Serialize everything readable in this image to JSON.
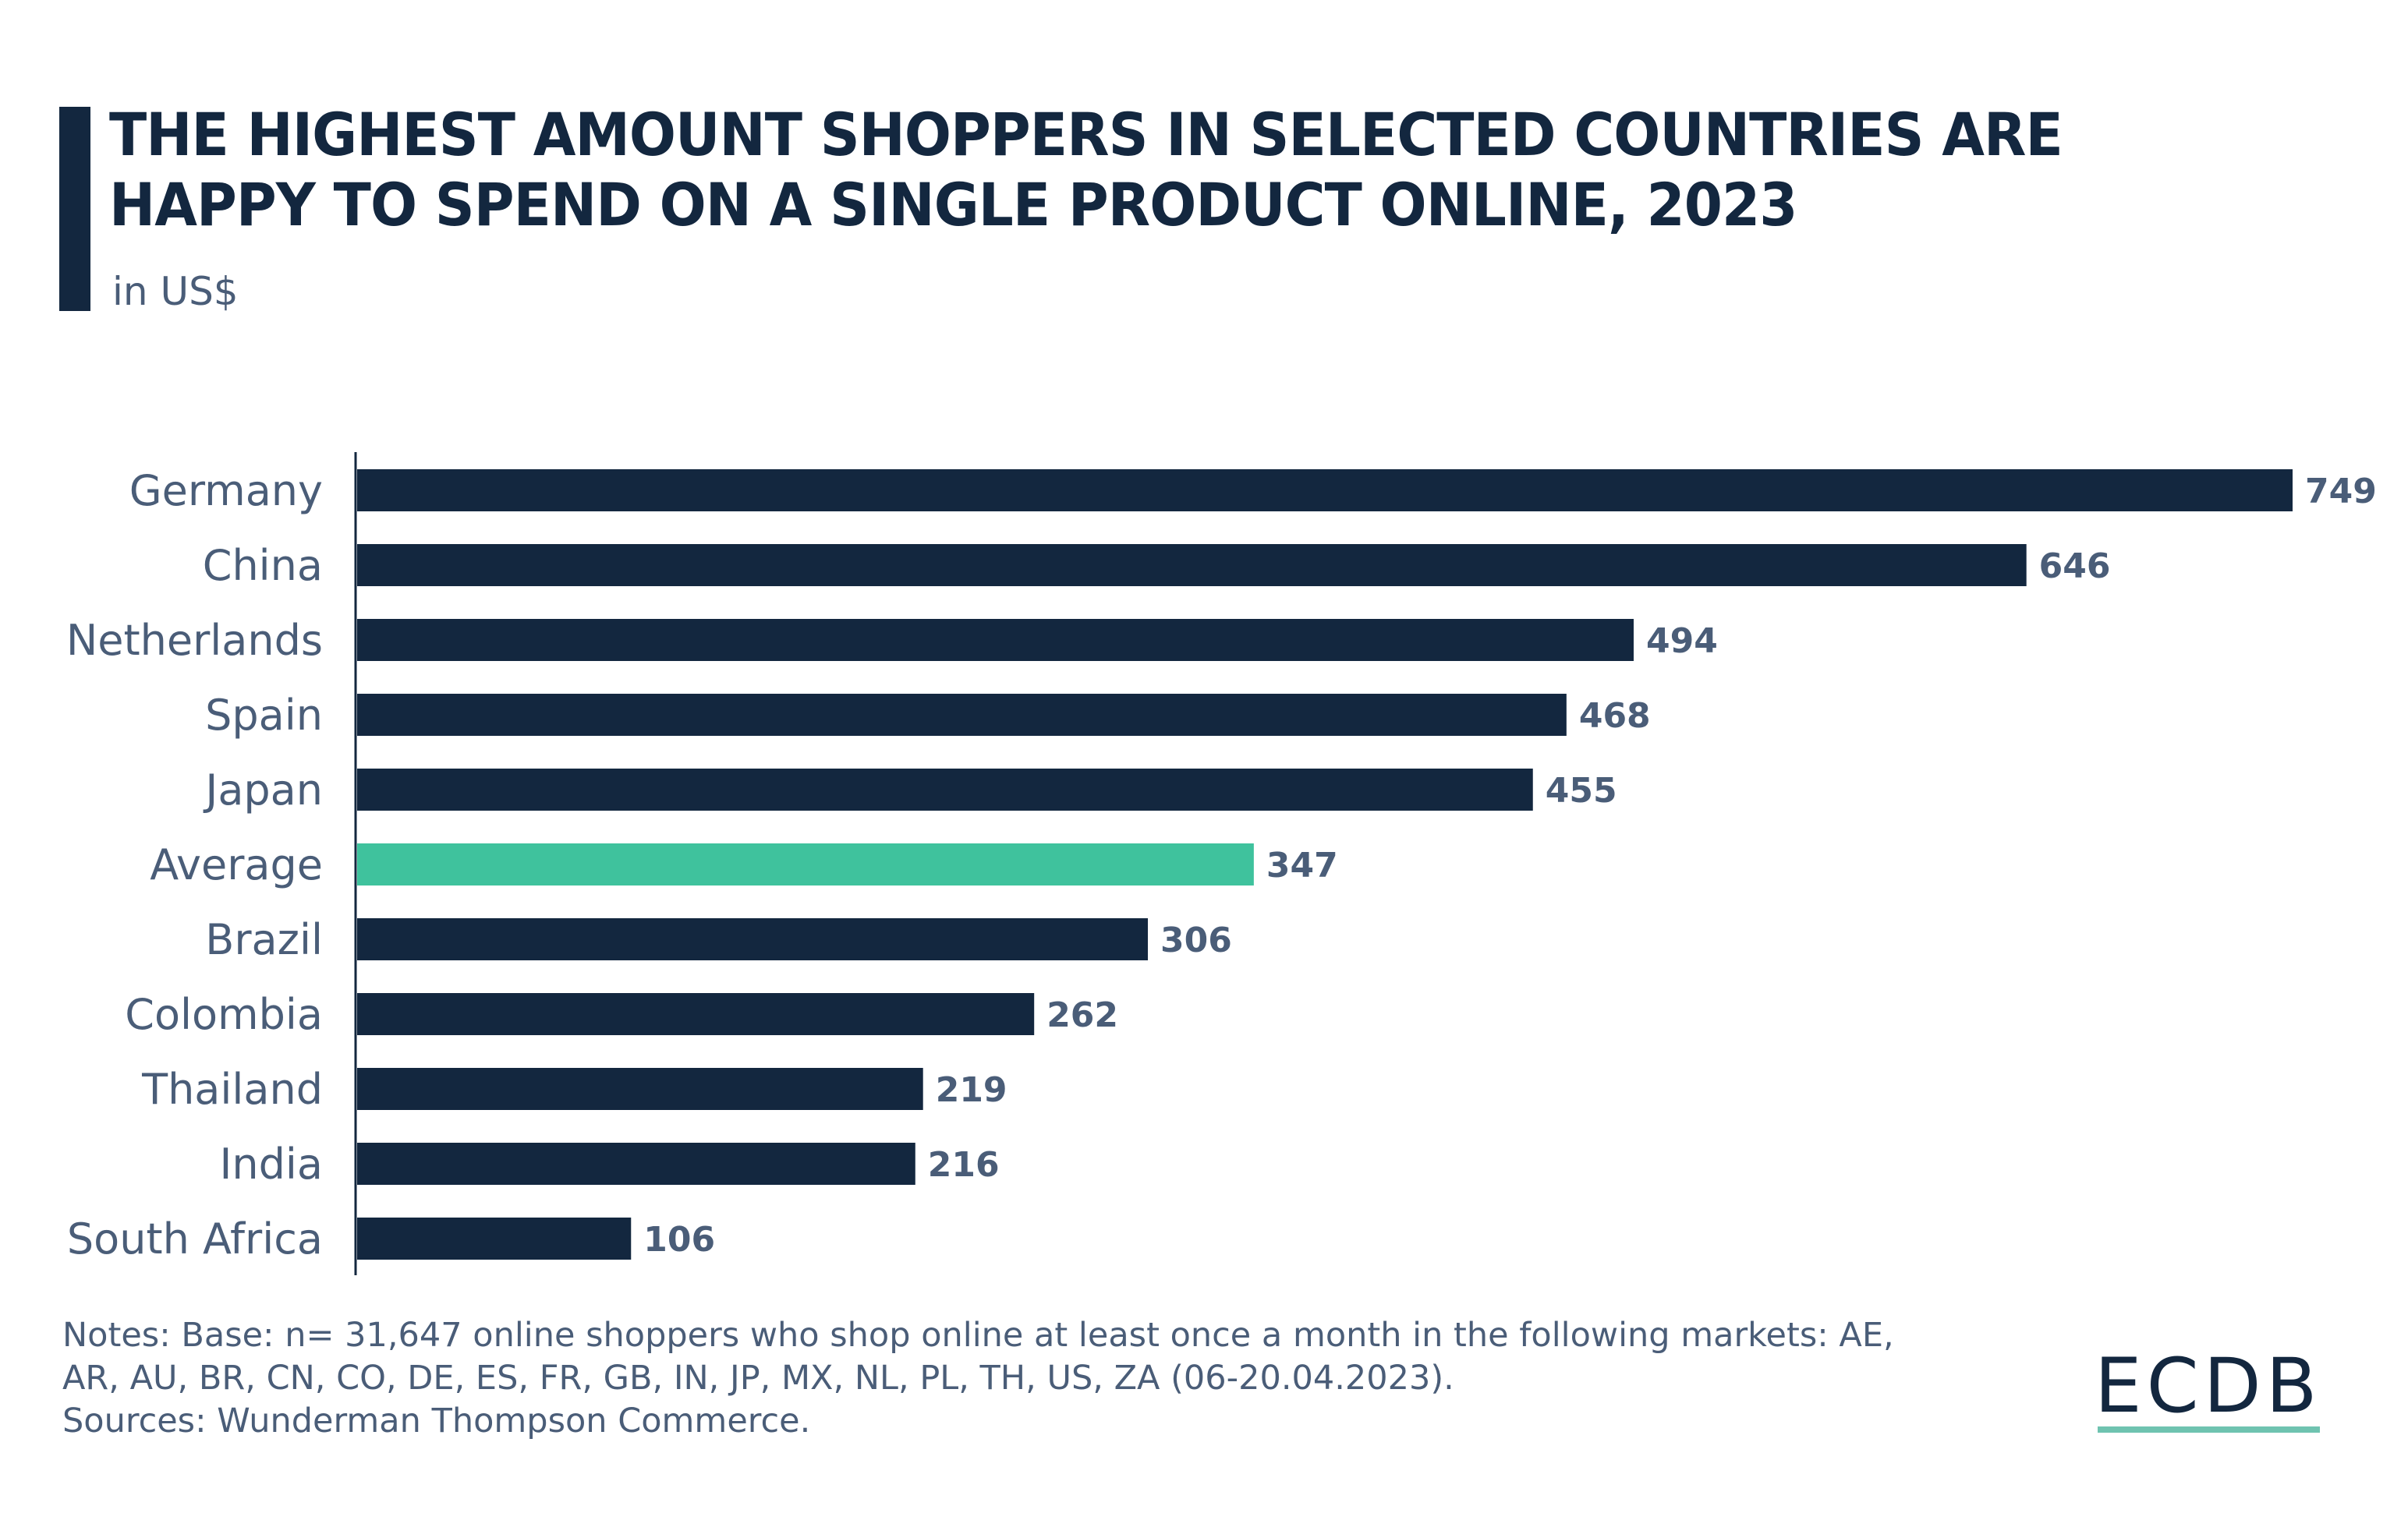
{
  "header": {
    "title_line1": "THE HIGHEST AMOUNT SHOPPERS IN SELECTED COUNTRIES ARE",
    "title_line2": "HAPPY TO SPEND ON A SINGLE PRODUCT ONLINE, 2023",
    "subtitle": "in US$"
  },
  "chart_data": {
    "type": "bar",
    "orientation": "horizontal",
    "title": "THE HIGHEST AMOUNT SHOPPERS IN SELECTED COUNTRIES ARE HAPPY TO SPEND ON A SINGLE PRODUCT ONLINE, 2023",
    "subtitle": "in US$",
    "categories": [
      "Germany",
      "China",
      "Netherlands",
      "Spain",
      "Japan",
      "Average",
      "Brazil",
      "Colombia",
      "Thailand",
      "India",
      "South Africa"
    ],
    "values": [
      749,
      646,
      494,
      468,
      455,
      347,
      306,
      262,
      219,
      216,
      106
    ],
    "highlight": "Average",
    "xlim": [
      0,
      749
    ],
    "grid": false,
    "colors": {
      "bar": "#13273f",
      "highlight": "#3fc29d",
      "value_label": "#4a5d78",
      "category_label": "#4a5d78"
    }
  },
  "footer": {
    "notes_line1": "Notes: Base: n= 31,647 online shoppers who shop online at least once a month in the following markets: AE,",
    "notes_line2": "AR, AU, BR, CN, CO, DE, ES, FR, GB, IN, JP, MX, NL, PL, TH, US, ZA (06-20.04.2023).",
    "sources": "Sources: Wunderman Thompson Commerce.",
    "logo": "ECDB"
  }
}
